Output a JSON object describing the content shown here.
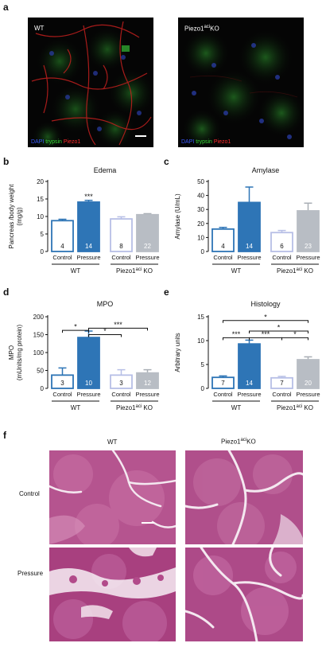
{
  "panel_labels": {
    "a": "a",
    "b": "b",
    "c": "c",
    "d": "d",
    "e": "e",
    "f": "f"
  },
  "panel_a": {
    "left_label": "WT",
    "right_label_prefix": "Piezo1",
    "right_label_sup": "aci",
    "right_label_suffix": "KO",
    "stain_dapi": "DAPI",
    "stain_trypsin": "trypsin",
    "stain_piezo": "Piezo1"
  },
  "panel_f": {
    "col_wt": "WT",
    "col_ko_prefix": "Piezo1",
    "col_ko_sup": "aci",
    "col_ko_suffix": "KO",
    "row_control": "Control",
    "row_pressure": "Pressure"
  },
  "colors": {
    "filled": "#2e75b6",
    "open_border": "#2e75b6",
    "ko_open_border": "#b7bfe6",
    "ko_filled": "#b8bdc4",
    "ko_filled_err": "#a9aeb5"
  },
  "chart_data": [
    {
      "id": "b",
      "type": "bar",
      "title": "Edema",
      "ylabel": "Pancreas /body weight (mg/g)",
      "ylim": [
        0,
        20
      ],
      "yticks": [
        0,
        5,
        10,
        15,
        20
      ],
      "categories": [
        "Control",
        "Pressure",
        "Control",
        "Pressure"
      ],
      "groups": [
        {
          "name": "WT",
          "sup": "",
          "suffix": ""
        },
        {
          "name": "Piezo1",
          "sup": "aci",
          "suffix": " KO"
        }
      ],
      "values": [
        8.8,
        14.1,
        9.3,
        10.5
      ],
      "errors": [
        0.4,
        0.5,
        0.6,
        0.3
      ],
      "n": [
        "4",
        "14",
        "8",
        "22"
      ],
      "annotations": [
        {
          "bar": 1,
          "text": "***"
        }
      ],
      "brackets": []
    },
    {
      "id": "c",
      "type": "bar",
      "title": "Amylase",
      "ylabel": "Amylase (U/mL)",
      "ylim": [
        0,
        50
      ],
      "yticks": [
        0,
        10,
        20,
        30,
        40,
        50
      ],
      "categories": [
        "Control",
        "Pressure",
        "Control",
        "Pressure"
      ],
      "groups": [
        {
          "name": "WT",
          "sup": "",
          "suffix": ""
        },
        {
          "name": "Piezo1",
          "sup": "aci",
          "suffix": " KO"
        }
      ],
      "values": [
        16,
        35,
        13.5,
        29
      ],
      "errors": [
        1.2,
        11,
        1.5,
        5.5
      ],
      "n": [
        "4",
        "14",
        "6",
        "23"
      ],
      "annotations": [],
      "brackets": []
    },
    {
      "id": "d",
      "type": "bar",
      "title": "MPO",
      "ylabel": "MPO (mUnits/mg protein)",
      "ylim": [
        0,
        200
      ],
      "yticks": [
        0,
        50,
        100,
        150,
        200
      ],
      "categories": [
        "Control",
        "Pressure",
        "Control",
        "Pressure"
      ],
      "groups": [
        {
          "name": "WT",
          "sup": "",
          "suffix": ""
        },
        {
          "name": "Piezo1",
          "sup": "aci",
          "suffix": " KO"
        }
      ],
      "values": [
        37,
        142,
        37,
        43
      ],
      "errors": [
        20,
        18,
        15,
        9
      ],
      "n": [
        "3",
        "10",
        "3",
        "12"
      ],
      "annotations": [],
      "brackets": [
        {
          "from": 0,
          "to": 1,
          "y": 162,
          "text": "*"
        },
        {
          "from": 1,
          "to": 3,
          "y": 168,
          "text": "***"
        },
        {
          "from": 1,
          "to": 2,
          "y": 150,
          "text": "*"
        }
      ]
    },
    {
      "id": "e",
      "type": "bar",
      "title": "Histology",
      "ylabel": "Arbitrary units",
      "ylim": [
        0,
        15
      ],
      "yticks": [
        0,
        5,
        10,
        15
      ],
      "categories": [
        "Control",
        "Pressure",
        "Control",
        "Pressure"
      ],
      "groups": [
        {
          "name": "WT",
          "sup": "",
          "suffix": ""
        },
        {
          "name": "Piezo1",
          "sup": "aci",
          "suffix": " KO"
        }
      ],
      "values": [
        2.3,
        9.3,
        2.2,
        6.0
      ],
      "errors": [
        0.3,
        0.8,
        0.3,
        0.6
      ],
      "n": [
        "7",
        "14",
        "7",
        "20"
      ],
      "annotations": [],
      "brackets": [
        {
          "from": 0,
          "to": 3,
          "y": 14.2,
          "text": "*"
        },
        {
          "from": 1,
          "to": 3,
          "y": 12.0,
          "text": "*"
        },
        {
          "from": 0,
          "to": 1,
          "y": 10.6,
          "text": "***"
        },
        {
          "from": 1,
          "to": 2,
          "y": 10.6,
          "text": "***"
        },
        {
          "from": 2,
          "to": 3,
          "y": 10.6,
          "text": "*"
        }
      ]
    }
  ]
}
